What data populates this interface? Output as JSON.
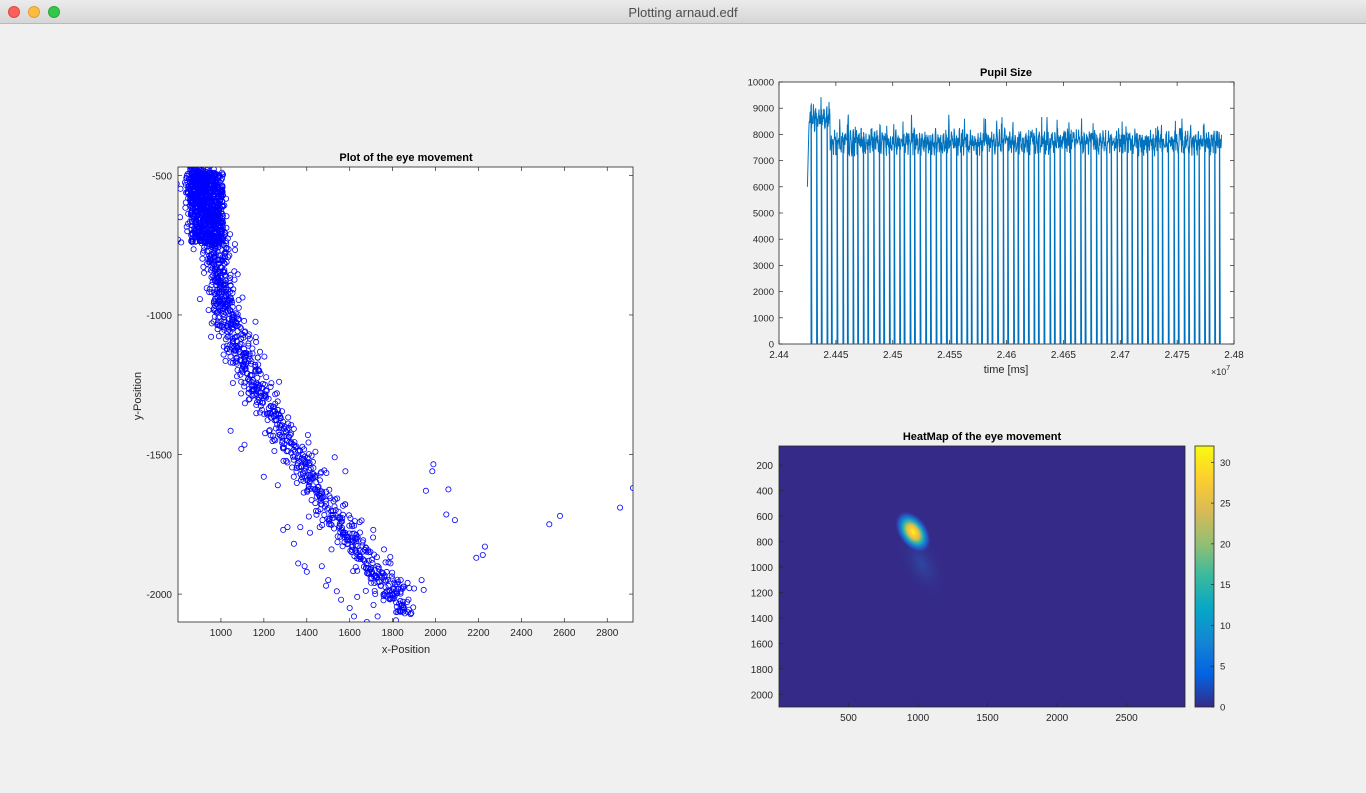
{
  "window": {
    "title": "Plotting arnaud.edf"
  },
  "colors": {
    "scatter": "#0000ff",
    "line": "#0072bd",
    "heat_background": "#352a87",
    "axes_background": "#ffffff",
    "figure_background": "#f0f0f0"
  },
  "chart_data": [
    {
      "type": "scatter",
      "title": "Plot of the eye movement",
      "xlabel": "x-Position",
      "ylabel": "y-Position",
      "xlim": [
        800,
        2920
      ],
      "ylim": [
        -2100,
        -470
      ],
      "xticks": [
        1000,
        1200,
        1400,
        1600,
        1800,
        2000,
        2200,
        2400,
        2600,
        2800
      ],
      "yticks": [
        -500,
        -1000,
        -1500,
        -2000
      ],
      "marker": "open circle",
      "outliers": [
        [
          1045,
          -1415
        ],
        [
          1095,
          -1480
        ],
        [
          1110,
          -1465
        ],
        [
          1200,
          -1580
        ],
        [
          1265,
          -1610
        ],
        [
          1290,
          -1770
        ],
        [
          1310,
          -1760
        ],
        [
          1340,
          -1820
        ],
        [
          1360,
          -1890
        ],
        [
          1370,
          -1760
        ],
        [
          1390,
          -1900
        ],
        [
          1400,
          -1920
        ],
        [
          1415,
          -1780
        ],
        [
          1440,
          -1490
        ],
        [
          1460,
          -1760
        ],
        [
          1470,
          -1900
        ],
        [
          1490,
          -1970
        ],
        [
          1500,
          -1950
        ],
        [
          1515,
          -1840
        ],
        [
          1530,
          -1510
        ],
        [
          1540,
          -1990
        ],
        [
          1560,
          -2020
        ],
        [
          1580,
          -1560
        ],
        [
          1600,
          -2050
        ],
        [
          1620,
          -2080
        ],
        [
          1635,
          -2010
        ],
        [
          1680,
          -2100
        ],
        [
          1710,
          -1770
        ],
        [
          1730,
          -2080
        ],
        [
          1760,
          -1840
        ],
        [
          1790,
          -1890
        ],
        [
          1840,
          -1980
        ],
        [
          1870,
          -1960
        ],
        [
          1900,
          -1980
        ],
        [
          1935,
          -1950
        ],
        [
          1945,
          -1985
        ],
        [
          1955,
          -1630
        ],
        [
          1985,
          -1560
        ],
        [
          1990,
          -1535
        ],
        [
          2050,
          -1715
        ],
        [
          2060,
          -1625
        ],
        [
          2090,
          -1735
        ],
        [
          2190,
          -1870
        ],
        [
          2220,
          -1860
        ],
        [
          2230,
          -1830
        ],
        [
          2530,
          -1750
        ],
        [
          2580,
          -1720
        ],
        [
          2860,
          -1690
        ],
        [
          2920,
          -1620
        ],
        [
          810,
          -650
        ],
        [
          800,
          -730
        ],
        [
          815,
          -740
        ]
      ]
    },
    {
      "type": "line",
      "title": "Pupil Size",
      "xlabel": "time [ms]",
      "ylabel": "",
      "xlim": [
        2.44,
        2.48
      ],
      "ylim": [
        0,
        10000
      ],
      "xticks": [
        "2.44",
        "2.445",
        "2.45",
        "2.455",
        "2.46",
        "2.465",
        "2.47",
        "2.475",
        "2.48"
      ],
      "yticks": [
        "0",
        "1000",
        "2000",
        "3000",
        "4000",
        "5000",
        "6000",
        "7000",
        "8000",
        "9000",
        "10000"
      ],
      "exponent_label": "×10",
      "exponent_power": "7",
      "x_start": 2.4425,
      "x_end": 2.4789,
      "blink_x": [
        2.4428,
        2.4433,
        2.4437,
        2.4442,
        2.4446,
        2.4451,
        2.4456,
        2.446,
        2.4465,
        2.4469,
        2.4474,
        2.4478,
        2.4483,
        2.4488,
        2.4492,
        2.4497,
        2.4501,
        2.4506,
        2.451,
        2.4515,
        2.4519,
        2.4524,
        2.4529,
        2.4533,
        2.4538,
        2.4542,
        2.4547,
        2.4551,
        2.4556,
        2.456,
        2.4565,
        2.4569,
        2.4574,
        2.4578,
        2.4583,
        2.4587,
        2.4592,
        2.4597,
        2.4601,
        2.4606,
        2.461,
        2.4615,
        2.4619,
        2.4624,
        2.4628,
        2.4633,
        2.4638,
        2.4642,
        2.4647,
        2.4651,
        2.4656,
        2.466,
        2.4665,
        2.4669,
        2.4674,
        2.4679,
        2.4683,
        2.4688,
        2.4692,
        2.4697,
        2.4701,
        2.4706,
        2.471,
        2.4715,
        2.4719,
        2.4724,
        2.4728,
        2.4733,
        2.4737,
        2.4742,
        2.4747,
        2.4751,
        2.4756,
        2.476,
        2.4765,
        2.4769,
        2.4774,
        2.4778,
        2.4783,
        2.4787
      ]
    },
    {
      "type": "heatmap",
      "title": "HeatMap of the eye movement",
      "xticks": [
        "500",
        "1000",
        "1500",
        "2000",
        "2500"
      ],
      "yticks": [
        "200",
        "400",
        "600",
        "800",
        "1000",
        "1200",
        "1400",
        "1600",
        "1800",
        "2000"
      ],
      "xlim": [
        0,
        2920
      ],
      "ylim": [
        50,
        2100
      ],
      "hotspot": {
        "x": 960,
        "y": 690,
        "peak": 31
      },
      "colorbar": {
        "min": 0,
        "max": 32,
        "ticks": [
          "0",
          "5",
          "10",
          "15",
          "20",
          "25",
          "30"
        ]
      },
      "colormap": "parula"
    }
  ]
}
